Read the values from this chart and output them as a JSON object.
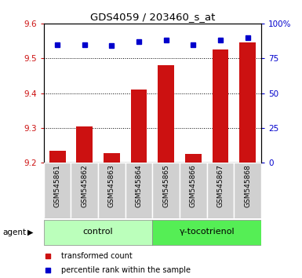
{
  "title": "GDS4059 / 203460_s_at",
  "samples": [
    "GSM545861",
    "GSM545862",
    "GSM545863",
    "GSM545864",
    "GSM545865",
    "GSM545866",
    "GSM545867",
    "GSM545868"
  ],
  "transformed_counts": [
    9.235,
    9.305,
    9.228,
    9.41,
    9.48,
    9.225,
    9.525,
    9.545
  ],
  "percentile_ranks": [
    85,
    85,
    84,
    87,
    88,
    85,
    88,
    90
  ],
  "groups": [
    "control",
    "control",
    "control",
    "control",
    "y-tocotrienol",
    "y-tocotrienol",
    "y-tocotrienol",
    "y-tocotrienol"
  ],
  "group_labels": [
    "control",
    "γ-tocotrienol"
  ],
  "group_colors": [
    "#bbffbb",
    "#55ee55"
  ],
  "bar_color": "#cc1111",
  "dot_color": "#0000cc",
  "ylim_left": [
    9.2,
    9.6
  ],
  "ylim_right": [
    0,
    100
  ],
  "yticks_left": [
    9.2,
    9.3,
    9.4,
    9.5,
    9.6
  ],
  "yticks_right": [
    0,
    25,
    50,
    75,
    100
  ],
  "ytick_labels_right": [
    "0",
    "25",
    "50",
    "75",
    "100%"
  ],
  "bar_width": 0.6,
  "background_color": "#ffffff",
  "agent_label": "agent",
  "legend_items": [
    "transformed count",
    "percentile rank within the sample"
  ],
  "sample_box_color": "#d0d0d0"
}
